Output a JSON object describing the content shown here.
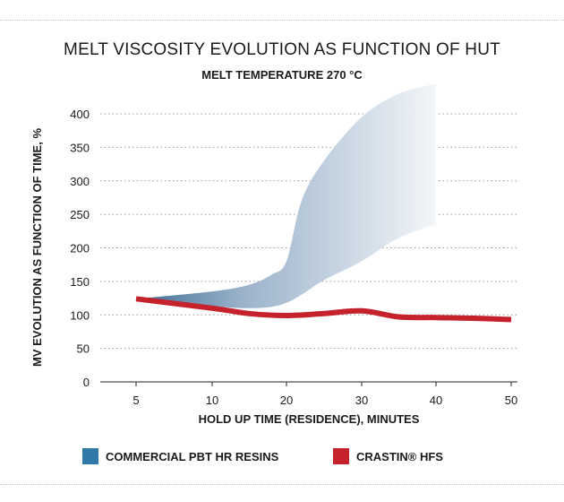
{
  "chart_data": {
    "type": "line",
    "title": "MELT VISCOSITY EVOLUTION AS FUNCTION OF HUT",
    "subtitle": "MELT TEMPERATURE 270 °C",
    "xlabel": "HOLD UP TIME (RESIDENCE), MINUTES",
    "ylabel": "MV EVOLUTION AS FUNCTION OF TIME, %",
    "x_ticks": [
      5,
      10,
      20,
      30,
      40,
      50
    ],
    "y_ticks": [
      0,
      50,
      100,
      150,
      200,
      250,
      300,
      350,
      400
    ],
    "ylim": [
      0,
      400
    ],
    "grid": "horizontal dotted",
    "legend_position": "bottom",
    "series": [
      {
        "name": "COMMERCIAL PBT HR RESINS",
        "kind": "band",
        "x": [
          5,
          10,
          15,
          18,
          20,
          22,
          25,
          30,
          35,
          40
        ],
        "upper": [
          124,
          135,
          145,
          160,
          180,
          270,
          330,
          395,
          430,
          445
        ],
        "lower": [
          124,
          113,
          110,
          112,
          118,
          130,
          152,
          180,
          215,
          235
        ],
        "color": "#2f7aa8"
      },
      {
        "name": "CRASTIN® HFS",
        "kind": "line",
        "x": [
          5,
          10,
          15,
          20,
          25,
          30,
          35,
          40,
          45,
          50
        ],
        "values": [
          124,
          110,
          102,
          99,
          102,
          106,
          97,
          96,
          95,
          93
        ],
        "color": "#c6222b"
      }
    ]
  }
}
